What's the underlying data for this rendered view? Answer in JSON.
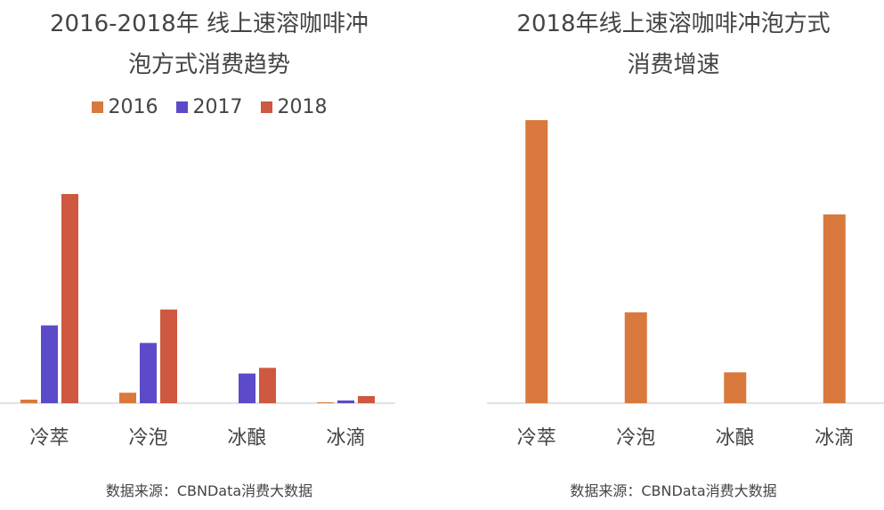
{
  "chart_data": [
    {
      "type": "bar",
      "title_lines": [
        "2016-2018年 线上速溶咖啡冲",
        "泡方式消费趋势"
      ],
      "categories": [
        "冷萃",
        "冷泡",
        "冰酿",
        "冰滴"
      ],
      "legend_position": "top-center",
      "grid": false,
      "ylim": [
        0,
        100
      ],
      "series": [
        {
          "name": "2016",
          "color": "#D9793E",
          "values": [
            1.7,
            5.0,
            0,
            0.4
          ]
        },
        {
          "name": "2017",
          "color": "#5B4BC8",
          "values": [
            37.2,
            28.8,
            14.2,
            1.3
          ]
        },
        {
          "name": "2018",
          "color": "#CE5940",
          "values": [
            100,
            44.8,
            16.9,
            3.4
          ]
        }
      ],
      "source": "数据来源：CBNData消费大数据"
    },
    {
      "type": "bar",
      "title_lines": [
        "2018年线上速溶咖啡冲泡方式",
        "消费增速"
      ],
      "categories": [
        "冷萃",
        "冷泡",
        "冰酿",
        "冰滴"
      ],
      "grid": false,
      "ylim": [
        0,
        100
      ],
      "series": [
        {
          "color": "#D9793E",
          "values": [
            100,
            32.1,
            10.9,
            66.7
          ]
        }
      ],
      "source": "数据来源：CBNData消费大数据"
    }
  ]
}
